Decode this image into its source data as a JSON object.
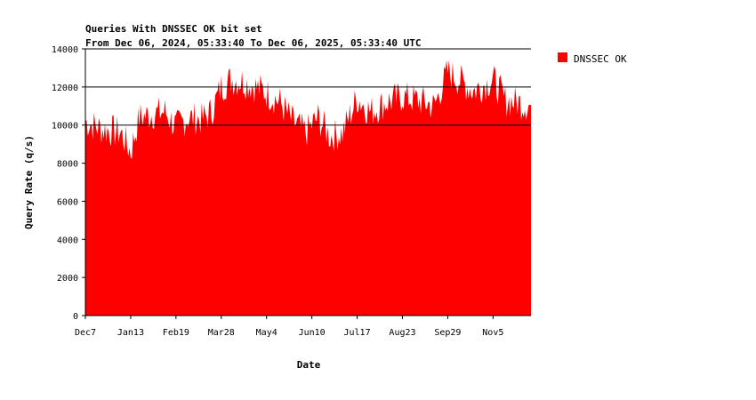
{
  "chart_data": {
    "type": "area",
    "title": "Queries With DNSSEC OK bit set",
    "subtitle": "From Dec 06, 2024, 05:33:40 To Dec 06, 2025, 05:33:40 UTC",
    "xlabel": "Date",
    "ylabel": "Query Rate (q/s)",
    "ylim": [
      0,
      14000
    ],
    "yticks": [
      0,
      2000,
      4000,
      6000,
      8000,
      10000,
      12000,
      14000
    ],
    "xticks": [
      "Dec7",
      "Jan13",
      "Feb19",
      "Mar28",
      "May4",
      "Jun10",
      "Jul17",
      "Aug23",
      "Sep29",
      "Nov5"
    ],
    "grid": "horizontal major lines at 10000, 12000, 14000",
    "legend_position": "top-right",
    "series": [
      {
        "name": "DNSSEC OK",
        "color": "#ff0000",
        "anchors": [
          {
            "x": "2024-12-07",
            "y": 10200
          },
          {
            "x": "2024-12-20",
            "y": 9800
          },
          {
            "x": "2025-01-05",
            "y": 9600
          },
          {
            "x": "2025-01-13",
            "y": 8600
          },
          {
            "x": "2025-01-20",
            "y": 10400
          },
          {
            "x": "2025-02-01",
            "y": 10600
          },
          {
            "x": "2025-02-10",
            "y": 10700
          },
          {
            "x": "2025-02-19",
            "y": 9900
          },
          {
            "x": "2025-03-01",
            "y": 10400
          },
          {
            "x": "2025-03-12",
            "y": 10300
          },
          {
            "x": "2025-03-20",
            "y": 10700
          },
          {
            "x": "2025-03-28",
            "y": 12000
          },
          {
            "x": "2025-04-05",
            "y": 12400
          },
          {
            "x": "2025-04-15",
            "y": 12300
          },
          {
            "x": "2025-04-25",
            "y": 12000
          },
          {
            "x": "2025-05-04",
            "y": 11700
          },
          {
            "x": "2025-05-15",
            "y": 11200
          },
          {
            "x": "2025-05-25",
            "y": 10200
          },
          {
            "x": "2025-06-05",
            "y": 9600
          },
          {
            "x": "2025-06-15",
            "y": 10400
          },
          {
            "x": "2025-06-25",
            "y": 9400
          },
          {
            "x": "2025-07-05",
            "y": 9600
          },
          {
            "x": "2025-07-17",
            "y": 11400
          },
          {
            "x": "2025-07-28",
            "y": 10700
          },
          {
            "x": "2025-08-10",
            "y": 11200
          },
          {
            "x": "2025-08-23",
            "y": 11500
          },
          {
            "x": "2025-09-05",
            "y": 11300
          },
          {
            "x": "2025-09-18",
            "y": 11000
          },
          {
            "x": "2025-09-29",
            "y": 12800
          },
          {
            "x": "2025-10-10",
            "y": 12300
          },
          {
            "x": "2025-10-20",
            "y": 11800
          },
          {
            "x": "2025-11-05",
            "y": 12400
          },
          {
            "x": "2025-11-15",
            "y": 11300
          },
          {
            "x": "2025-11-25",
            "y": 11200
          },
          {
            "x": "2025-12-06",
            "y": 11000
          }
        ]
      }
    ]
  }
}
